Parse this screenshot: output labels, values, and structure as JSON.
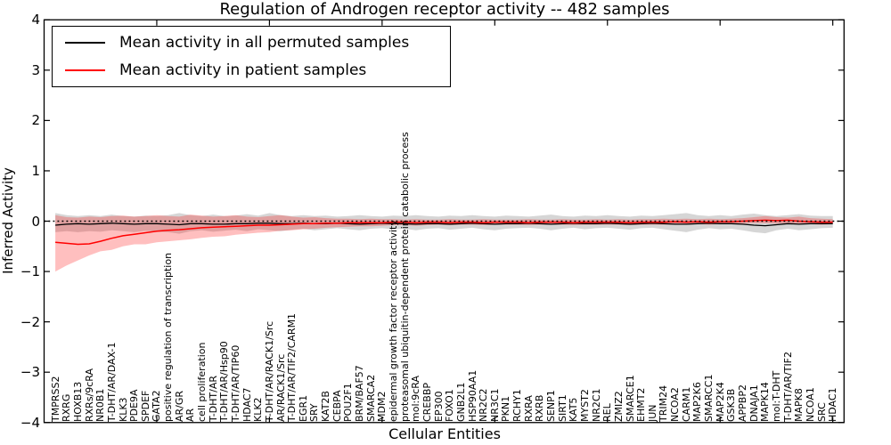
{
  "figure": {
    "title": "Regulation of Androgen receptor activity -- 482 samples",
    "xlabel": "Cellular Entities",
    "ylabel": "Inferred Activity",
    "background": "#ffffff",
    "legend": {
      "position": "upper left",
      "entries": [
        {
          "label": "Mean activity in all permuted samples",
          "color": "#000000"
        },
        {
          "label": "Mean activity in patient samples",
          "color": "#ff0000"
        }
      ]
    }
  },
  "chart_data": {
    "type": "line",
    "title": "Regulation of Androgen receptor activity -- 482 samples",
    "xlabel": "Cellular Entities",
    "ylabel": "Inferred Activity",
    "xlim": [
      0,
      71
    ],
    "ylim": [
      -4,
      4
    ],
    "grid": false,
    "legend_position": "upper left",
    "yticks": [
      4,
      3,
      2,
      1,
      0,
      -1,
      -2,
      -3,
      -4
    ],
    "ytick_labels": [
      "4",
      "3",
      "2",
      "1",
      "0",
      "−1",
      "−2",
      "−3",
      "−4"
    ],
    "zero_line": {
      "y": 0,
      "style": "dotted",
      "color": "#000000"
    },
    "categories": [
      "TMPRSS2",
      "RXRG",
      "HOXB13",
      "RXRs/9cRA",
      "NR0B1",
      "T-DHT/AR/DAX-1",
      "KLK3",
      "PDE9A",
      "SPDEF",
      "GATA2",
      "positive regulation of transcription",
      "AR/GR",
      "AR",
      "cell proliferation",
      "T-DHT/AR",
      "T-DHT/AR/Hsp90",
      "T-DHT/AR/TIP60",
      "HDAC7",
      "KLK2",
      "T-DHT/AR/RACK1/Src",
      "AR/RACK1/Src",
      "T-DHT/AR/TIF2/CARM1",
      "EGR1",
      "SRY",
      "KAT2B",
      "CEBPA",
      "POU2F1",
      "BRM/BAF57",
      "SMARCA2",
      "MDM2",
      "epidermal growth factor receptor activity",
      "proteasomal ubiquitin-dependent protein catabolic process",
      "mol:9cRA",
      "CREBBP",
      "EP300",
      "FOXO1",
      "GNB2L1",
      "HSP90AA1",
      "NR2C2",
      "NR3C1",
      "PKN1",
      "RCHY1",
      "RXRA",
      "RXRB",
      "SENP1",
      "SIRT1",
      "KAT5",
      "MYST2",
      "NR2C1",
      "REL",
      "ZMIZ2",
      "SMARCE1",
      "EHMT2",
      "JUN",
      "TRIM24",
      "NCOA2",
      "CARM1",
      "MAP2K6",
      "SMARCC1",
      "MAP2K4",
      "GSK3B",
      "APPBP2",
      "DNAJA1",
      "MAPK14",
      "mol:T-DHT",
      "T-DHT/AR/TIF2",
      "MAPK8",
      "NCOA1",
      "SRC",
      "HDAC1"
    ],
    "series": [
      {
        "name": "Mean activity in all permuted samples",
        "color": "#000000",
        "band_color": "rgba(0,0,0,0.16)",
        "values": [
          -0.08,
          -0.06,
          -0.05,
          -0.06,
          -0.05,
          -0.04,
          -0.05,
          -0.06,
          -0.05,
          -0.05,
          -0.06,
          -0.07,
          -0.05,
          -0.05,
          -0.06,
          -0.06,
          -0.05,
          -0.05,
          -0.04,
          -0.04,
          -0.05,
          -0.05,
          -0.04,
          -0.05,
          -0.05,
          -0.04,
          -0.05,
          -0.06,
          -0.05,
          -0.04,
          -0.05,
          -0.05,
          -0.06,
          -0.05,
          -0.05,
          -0.06,
          -0.05,
          -0.04,
          -0.05,
          -0.06,
          -0.05,
          -0.05,
          -0.04,
          -0.05,
          -0.06,
          -0.05,
          -0.04,
          -0.05,
          -0.05,
          -0.04,
          -0.05,
          -0.06,
          -0.05,
          -0.04,
          -0.05,
          -0.06,
          -0.06,
          -0.05,
          -0.04,
          -0.05,
          -0.05,
          -0.06,
          -0.08,
          -0.09,
          -0.07,
          -0.05,
          -0.06,
          -0.05,
          -0.05,
          -0.05
        ],
        "band_upper": [
          0.16,
          0.12,
          0.1,
          0.12,
          0.1,
          0.13,
          0.1,
          0.09,
          0.11,
          0.1,
          0.12,
          0.16,
          0.12,
          0.1,
          0.13,
          0.1,
          0.11,
          0.14,
          0.11,
          0.16,
          0.12,
          0.1,
          0.12,
          0.1,
          0.11,
          0.09,
          0.1,
          0.12,
          0.1,
          0.09,
          0.11,
          0.1,
          0.12,
          0.1,
          0.09,
          0.11,
          0.1,
          0.12,
          0.1,
          0.09,
          0.11,
          0.1,
          0.09,
          0.11,
          0.13,
          0.1,
          0.09,
          0.11,
          0.1,
          0.12,
          0.1,
          0.09,
          0.11,
          0.1,
          0.12,
          0.14,
          0.16,
          0.12,
          0.1,
          0.12,
          0.1,
          0.13,
          0.15,
          0.12,
          0.1,
          0.12,
          0.14,
          0.11,
          0.1,
          0.1
        ],
        "band_lower": [
          -0.22,
          -0.2,
          -0.22,
          -0.2,
          -0.21,
          -0.18,
          -0.2,
          -0.22,
          -0.19,
          -0.21,
          -0.22,
          -0.25,
          -0.2,
          -0.18,
          -0.21,
          -0.19,
          -0.17,
          -0.2,
          -0.16,
          -0.18,
          -0.2,
          -0.17,
          -0.15,
          -0.18,
          -0.16,
          -0.14,
          -0.16,
          -0.18,
          -0.15,
          -0.14,
          -0.16,
          -0.15,
          -0.18,
          -0.15,
          -0.14,
          -0.17,
          -0.15,
          -0.13,
          -0.16,
          -0.18,
          -0.15,
          -0.14,
          -0.13,
          -0.15,
          -0.18,
          -0.15,
          -0.13,
          -0.16,
          -0.14,
          -0.13,
          -0.15,
          -0.17,
          -0.14,
          -0.13,
          -0.16,
          -0.19,
          -0.22,
          -0.17,
          -0.14,
          -0.16,
          -0.15,
          -0.18,
          -0.22,
          -0.24,
          -0.18,
          -0.15,
          -0.18,
          -0.16,
          -0.14,
          -0.13
        ]
      },
      {
        "name": "Mean activity in patient samples",
        "color": "#ff0000",
        "band_color": "rgba(255,0,0,0.25)",
        "values": [
          -0.42,
          -0.44,
          -0.46,
          -0.45,
          -0.4,
          -0.34,
          -0.29,
          -0.26,
          -0.23,
          -0.2,
          -0.18,
          -0.17,
          -0.15,
          -0.13,
          -0.12,
          -0.11,
          -0.1,
          -0.09,
          -0.08,
          -0.08,
          -0.07,
          -0.06,
          -0.05,
          -0.05,
          -0.04,
          -0.04,
          -0.03,
          -0.03,
          -0.03,
          -0.03,
          -0.02,
          -0.02,
          -0.03,
          -0.02,
          -0.02,
          -0.03,
          -0.02,
          -0.02,
          -0.03,
          -0.02,
          -0.02,
          -0.02,
          -0.03,
          -0.02,
          -0.02,
          -0.02,
          -0.03,
          -0.02,
          -0.02,
          -0.02,
          -0.02,
          -0.03,
          -0.02,
          -0.02,
          -0.02,
          -0.01,
          -0.02,
          -0.01,
          -0.02,
          -0.01,
          -0.01,
          0.0,
          0.01,
          0.02,
          0.01,
          0.02,
          0.0,
          -0.01,
          -0.02,
          -0.02
        ],
        "band_upper": [
          0.12,
          0.08,
          0.07,
          0.09,
          0.08,
          0.1,
          0.11,
          0.09,
          0.1,
          0.12,
          0.1,
          0.09,
          0.13,
          0.11,
          0.09,
          0.1,
          0.12,
          0.09,
          0.08,
          0.1,
          0.12,
          0.09,
          0.07,
          0.08,
          0.06,
          0.05,
          0.05,
          0.04,
          0.05,
          0.04,
          0.04,
          0.03,
          0.04,
          0.03,
          0.03,
          0.04,
          0.03,
          0.03,
          0.04,
          0.03,
          0.03,
          0.03,
          0.04,
          0.03,
          0.03,
          0.04,
          0.03,
          0.03,
          0.04,
          0.03,
          0.04,
          0.03,
          0.04,
          0.04,
          0.05,
          0.04,
          0.05,
          0.04,
          0.05,
          0.04,
          0.05,
          0.06,
          0.08,
          0.1,
          0.08,
          0.07,
          0.09,
          0.06,
          0.05,
          0.04
        ],
        "band_lower": [
          -1.0,
          -0.88,
          -0.78,
          -0.68,
          -0.6,
          -0.57,
          -0.5,
          -0.46,
          -0.46,
          -0.42,
          -0.4,
          -0.38,
          -0.36,
          -0.33,
          -0.31,
          -0.3,
          -0.27,
          -0.25,
          -0.23,
          -0.22,
          -0.19,
          -0.18,
          -0.16,
          -0.15,
          -0.13,
          -0.12,
          -0.11,
          -0.1,
          -0.1,
          -0.09,
          -0.08,
          -0.08,
          -0.09,
          -0.08,
          -0.07,
          -0.08,
          -0.07,
          -0.07,
          -0.08,
          -0.07,
          -0.07,
          -0.07,
          -0.08,
          -0.07,
          -0.07,
          -0.07,
          -0.08,
          -0.07,
          -0.07,
          -0.07,
          -0.07,
          -0.08,
          -0.07,
          -0.07,
          -0.07,
          -0.06,
          -0.07,
          -0.06,
          -0.07,
          -0.06,
          -0.06,
          -0.05,
          -0.04,
          -0.04,
          -0.05,
          -0.04,
          -0.05,
          -0.06,
          -0.07,
          -0.06
        ]
      }
    ]
  }
}
